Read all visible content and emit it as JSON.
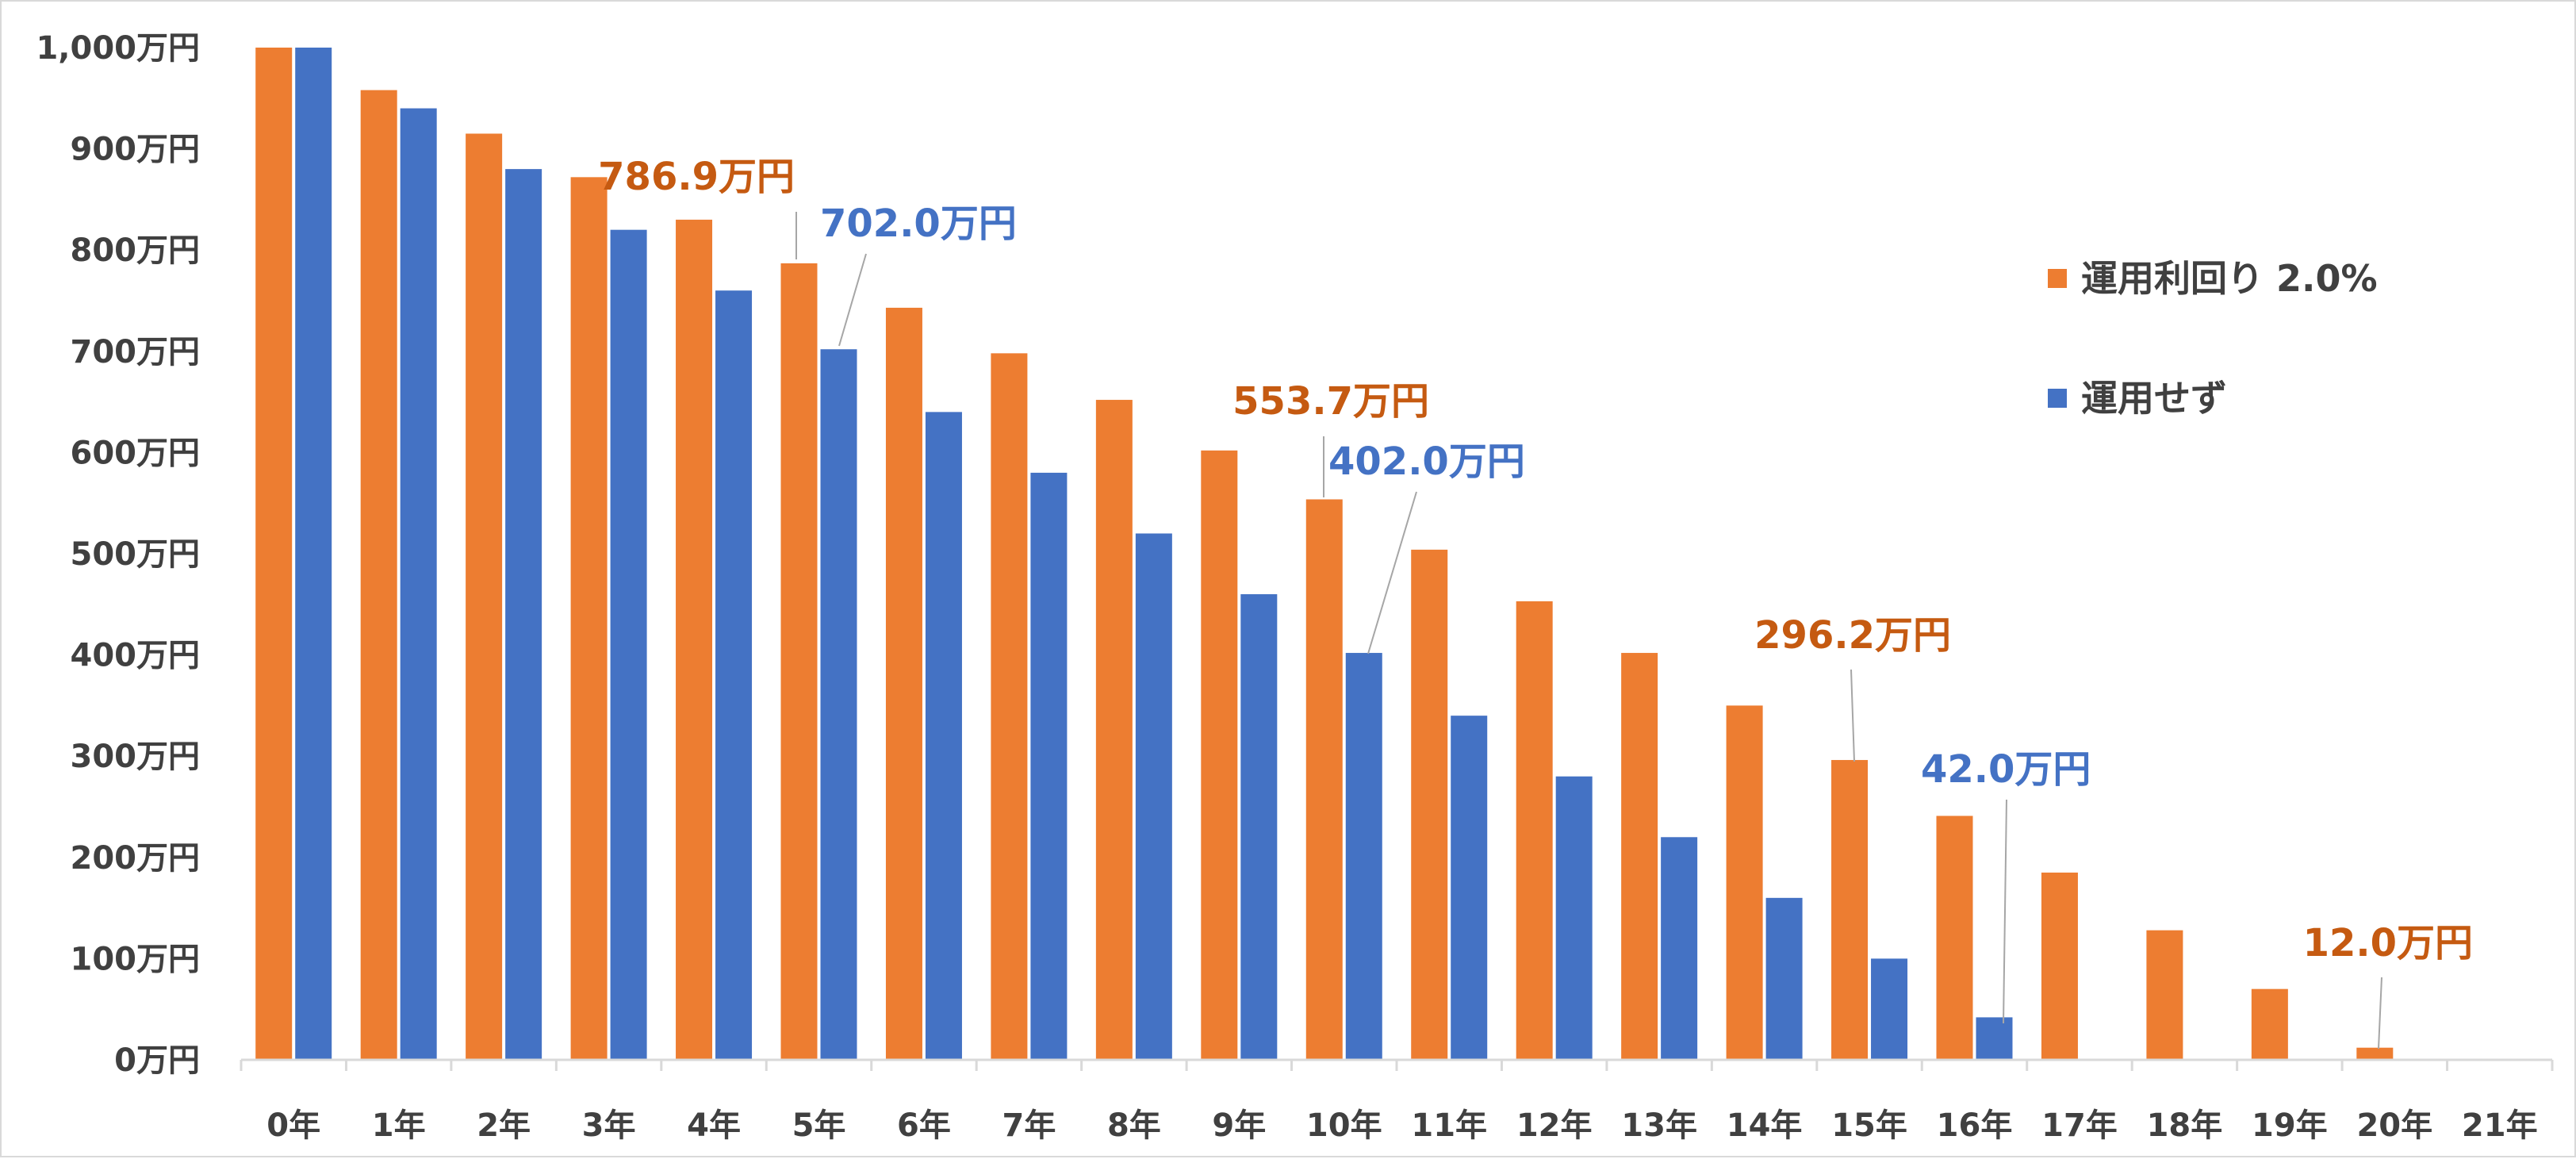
{
  "chart_data": {
    "type": "bar",
    "categories": [
      "0年",
      "1年",
      "2年",
      "3年",
      "4年",
      "5年",
      "6年",
      "7年",
      "8年",
      "9年",
      "10年",
      "11年",
      "12年",
      "13年",
      "14年",
      "15年",
      "16年",
      "17年",
      "18年",
      "19年",
      "20年",
      "21年"
    ],
    "yticks": [
      "0万円",
      "100万円",
      "200万円",
      "300万円",
      "400万円",
      "500万円",
      "600万円",
      "700万円",
      "800万円",
      "900万円",
      "1,000万円"
    ],
    "ylim": [
      0,
      1000
    ],
    "grid": false,
    "legend_position": "right",
    "series": [
      {
        "name": "運用利回り  2.0%",
        "color": "#ED7D31",
        "values": [
          1000,
          958,
          915,
          872,
          830,
          786.9,
          743,
          698,
          652,
          602,
          553.7,
          504,
          453,
          402,
          350,
          296.2,
          241,
          185,
          128,
          70,
          12.0,
          0
        ]
      },
      {
        "name": "運用せず",
        "color": "#4472C4",
        "values": [
          1000,
          940,
          880,
          820,
          760,
          702.0,
          640,
          580,
          520,
          460,
          402.0,
          340,
          280,
          220,
          160,
          100,
          42.0,
          0,
          0,
          0,
          0,
          0
        ]
      }
    ],
    "annotations": [
      {
        "series": 0,
        "index": 5,
        "text": "786.9万円",
        "color": "#C55A11"
      },
      {
        "series": 1,
        "index": 5,
        "text": "702.0万円",
        "color": "#4472C4"
      },
      {
        "series": 0,
        "index": 10,
        "text": "553.7万円",
        "color": "#C55A11"
      },
      {
        "series": 1,
        "index": 10,
        "text": "402.0万円",
        "color": "#4472C4"
      },
      {
        "series": 0,
        "index": 15,
        "text": "296.2万円",
        "color": "#C55A11"
      },
      {
        "series": 1,
        "index": 16,
        "text": "42.0万円",
        "color": "#4472C4"
      },
      {
        "series": 0,
        "index": 20,
        "text": "12.0万円",
        "color": "#C55A11"
      }
    ]
  }
}
